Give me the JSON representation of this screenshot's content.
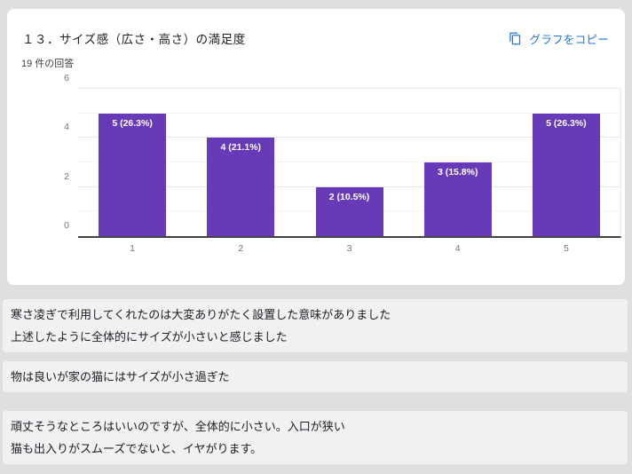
{
  "card": {
    "title": "１３．サイズ感（広さ・高さ）の満足度",
    "response_count": "19 件の回答",
    "copy_button": {
      "label": "グラフをコピー",
      "icon": "copy-icon"
    }
  },
  "colors": {
    "accent_blue": "#1a73e8",
    "bar_purple": "#673ab7",
    "card_bg": "#ffffff",
    "page_bg": "#dfdfe1",
    "chip_bg": "#f1f1f3"
  },
  "chart_data": {
    "type": "bar",
    "title": "１３．サイズ感（広さ・高さ）の満足度",
    "categories": [
      "1",
      "2",
      "3",
      "4",
      "5"
    ],
    "values": [
      5,
      4,
      2,
      3,
      5
    ],
    "bar_labels": [
      "5 (26.3%)",
      "4 (21.1%)",
      "2 (10.5%)",
      "3 (15.8%)",
      "5 (26.3%)"
    ],
    "xlabel": "",
    "ylabel": "",
    "ylim": [
      0,
      6
    ],
    "yticks": [
      0,
      2,
      4,
      6
    ],
    "minor_ticks": [
      1,
      3,
      5
    ],
    "grid": true,
    "legend": false,
    "bar_color": "#673ab7"
  },
  "responses": [
    {
      "lines": [
        "寒さ凌ぎで利用してくれたのは大変ありがたく設置した意味がありました",
        "上述したように全体的にサイズが小さいと感じました"
      ]
    },
    {
      "lines": [
        "物は良いが家の猫にはサイズが小さ過ぎた"
      ]
    },
    {
      "lines": [
        "頑丈そうなところはいいのですが、全体的に小さい。入口が狭い",
        "猫も出入りがスムーズでないと、イヤがります。"
      ]
    }
  ]
}
